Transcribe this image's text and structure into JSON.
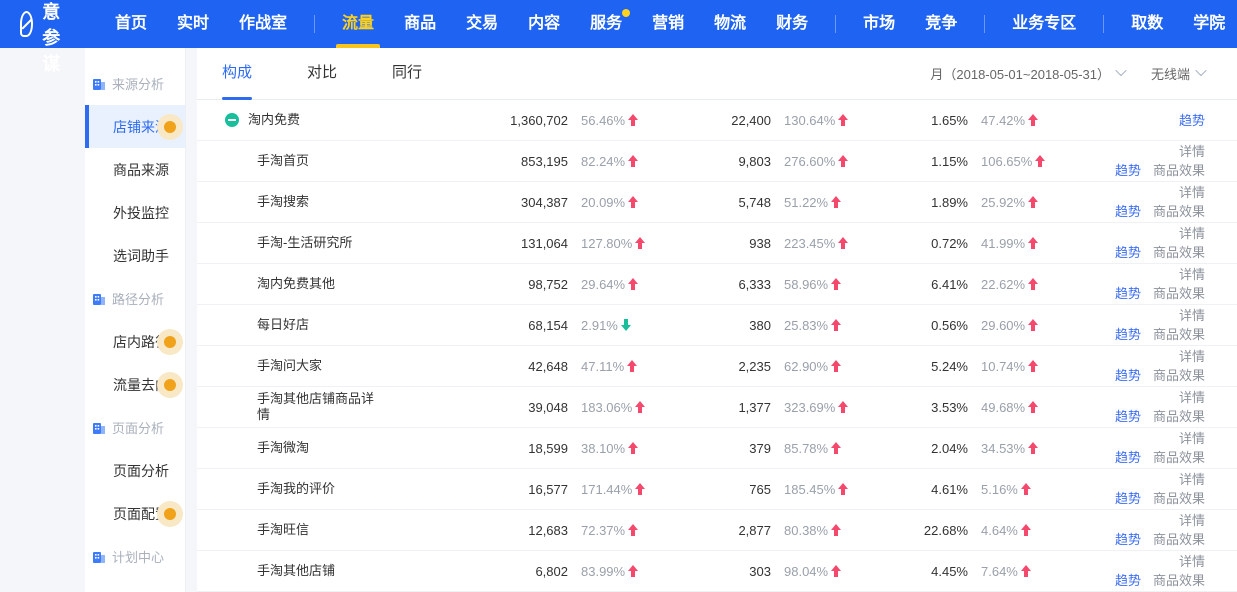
{
  "navbar": {
    "brand": "生意参谋",
    "items": [
      {
        "key": "home",
        "label": "首页"
      },
      {
        "key": "realtime",
        "label": "实时"
      },
      {
        "key": "war-room",
        "label": "作战室",
        "divider_after": true
      },
      {
        "key": "traffic",
        "label": "流量",
        "active": true
      },
      {
        "key": "product",
        "label": "商品"
      },
      {
        "key": "trade",
        "label": "交易"
      },
      {
        "key": "content",
        "label": "内容"
      },
      {
        "key": "service",
        "label": "服务",
        "badge": true
      },
      {
        "key": "marketing",
        "label": "营销"
      },
      {
        "key": "logistics",
        "label": "物流"
      },
      {
        "key": "finance",
        "label": "财务",
        "divider_after": true
      },
      {
        "key": "market",
        "label": "市场"
      },
      {
        "key": "competition",
        "label": "竞争",
        "divider_after": true
      },
      {
        "key": "business-zone",
        "label": "业务专区",
        "divider_after": true
      },
      {
        "key": "data-fetch",
        "label": "取数"
      },
      {
        "key": "academy",
        "label": "学院"
      }
    ]
  },
  "sidebar": {
    "sections": [
      {
        "key": "source-analysis",
        "title": "来源分析",
        "items": [
          {
            "key": "shop-source",
            "label": "店铺来源",
            "selected": true,
            "dot": true
          },
          {
            "key": "product-source",
            "label": "商品来源"
          },
          {
            "key": "external-monitor",
            "label": "外投监控"
          },
          {
            "key": "word-assistant",
            "label": "选词助手"
          }
        ]
      },
      {
        "key": "path-analysis",
        "title": "路径分析",
        "items": [
          {
            "key": "instore-path",
            "label": "店内路径",
            "dot": true
          },
          {
            "key": "traffic-destination",
            "label": "流量去向",
            "dot": true
          }
        ]
      },
      {
        "key": "page-analysis",
        "title": "页面分析",
        "items": [
          {
            "key": "page-analysis-item",
            "label": "页面分析"
          },
          {
            "key": "page-config",
            "label": "页面配置",
            "dot": true
          }
        ]
      },
      {
        "key": "plan-center",
        "title": "计划中心",
        "items": []
      }
    ]
  },
  "toolbar": {
    "tabs": [
      {
        "key": "composition",
        "label": "构成",
        "active": true
      },
      {
        "key": "compare",
        "label": "对比"
      },
      {
        "key": "peers",
        "label": "同行"
      }
    ],
    "date_filter": "月（2018-05-01~2018-05-31）",
    "device_filter": "无线端"
  },
  "actions_labels": {
    "trend": "趋势",
    "detail": "详情",
    "effect": "商品效果"
  },
  "table": {
    "rows": [
      {
        "name": "淘内免费",
        "level": 0,
        "expandable": true,
        "visitors": "1,360,702",
        "visitors_change": "56.46%",
        "visitors_dir": "up",
        "buyers": "22,400",
        "buyers_change": "130.64%",
        "buyers_dir": "up",
        "rate": "1.65%",
        "rate_change": "47.42%",
        "rate_dir": "up",
        "actions": "trend_only"
      },
      {
        "name": "手淘首页",
        "level": 1,
        "visitors": "853,195",
        "visitors_change": "82.24%",
        "visitors_dir": "up",
        "buyers": "9,803",
        "buyers_change": "276.60%",
        "buyers_dir": "up",
        "rate": "1.15%",
        "rate_change": "106.65%",
        "rate_dir": "up",
        "actions": "full"
      },
      {
        "name": "手淘搜索",
        "level": 1,
        "visitors": "304,387",
        "visitors_change": "20.09%",
        "visitors_dir": "up",
        "buyers": "5,748",
        "buyers_change": "51.22%",
        "buyers_dir": "up",
        "rate": "1.89%",
        "rate_change": "25.92%",
        "rate_dir": "up",
        "actions": "full"
      },
      {
        "name": "手淘-生活研究所",
        "level": 1,
        "visitors": "131,064",
        "visitors_change": "127.80%",
        "visitors_dir": "up",
        "buyers": "938",
        "buyers_change": "223.45%",
        "buyers_dir": "up",
        "rate": "0.72%",
        "rate_change": "41.99%",
        "rate_dir": "up",
        "actions": "full"
      },
      {
        "name": "淘内免费其他",
        "level": 1,
        "visitors": "98,752",
        "visitors_change": "29.64%",
        "visitors_dir": "up",
        "buyers": "6,333",
        "buyers_change": "58.96%",
        "buyers_dir": "up",
        "rate": "6.41%",
        "rate_change": "22.62%",
        "rate_dir": "up",
        "actions": "full"
      },
      {
        "name": "每日好店",
        "level": 1,
        "visitors": "68,154",
        "visitors_change": "2.91%",
        "visitors_dir": "down",
        "buyers": "380",
        "buyers_change": "25.83%",
        "buyers_dir": "up",
        "rate": "0.56%",
        "rate_change": "29.60%",
        "rate_dir": "up",
        "actions": "full"
      },
      {
        "name": "手淘问大家",
        "level": 1,
        "visitors": "42,648",
        "visitors_change": "47.11%",
        "visitors_dir": "up",
        "buyers": "2,235",
        "buyers_change": "62.90%",
        "buyers_dir": "up",
        "rate": "5.24%",
        "rate_change": "10.74%",
        "rate_dir": "up",
        "actions": "full"
      },
      {
        "name": "手淘其他店铺商品详情",
        "level": 1,
        "wrap": true,
        "visitors": "39,048",
        "visitors_change": "183.06%",
        "visitors_dir": "up",
        "buyers": "1,377",
        "buyers_change": "323.69%",
        "buyers_dir": "up",
        "rate": "3.53%",
        "rate_change": "49.68%",
        "rate_dir": "up",
        "actions": "full"
      },
      {
        "name": "手淘微淘",
        "level": 1,
        "visitors": "18,599",
        "visitors_change": "38.10%",
        "visitors_dir": "up",
        "buyers": "379",
        "buyers_change": "85.78%",
        "buyers_dir": "up",
        "rate": "2.04%",
        "rate_change": "34.53%",
        "rate_dir": "up",
        "actions": "full"
      },
      {
        "name": "手淘我的评价",
        "level": 1,
        "visitors": "16,577",
        "visitors_change": "171.44%",
        "visitors_dir": "up",
        "buyers": "765",
        "buyers_change": "185.45%",
        "buyers_dir": "up",
        "rate": "4.61%",
        "rate_change": "5.16%",
        "rate_dir": "up",
        "actions": "full"
      },
      {
        "name": "手淘旺信",
        "level": 1,
        "visitors": "12,683",
        "visitors_change": "72.37%",
        "visitors_dir": "up",
        "buyers": "2,877",
        "buyers_change": "80.38%",
        "buyers_dir": "up",
        "rate": "22.68%",
        "rate_change": "4.64%",
        "rate_dir": "up",
        "actions": "full"
      },
      {
        "name": "手淘其他店铺",
        "level": 1,
        "visitors": "6,802",
        "visitors_change": "83.99%",
        "visitors_dir": "up",
        "buyers": "303",
        "buyers_change": "98.04%",
        "buyers_dir": "up",
        "rate": "4.45%",
        "rate_change": "7.64%",
        "rate_dir": "up",
        "actions": "full"
      }
    ],
    "colors": {
      "up_arrow": "#f5486d",
      "down_arrow": "#19be9b",
      "link": "#3d6ef2",
      "navbar": "#1e63f1",
      "nav_active": "#ffd21e",
      "sidebar_selected": "#2e6bf0",
      "toggle": "#19be9b",
      "dot_badge": "#f0a21a"
    }
  }
}
